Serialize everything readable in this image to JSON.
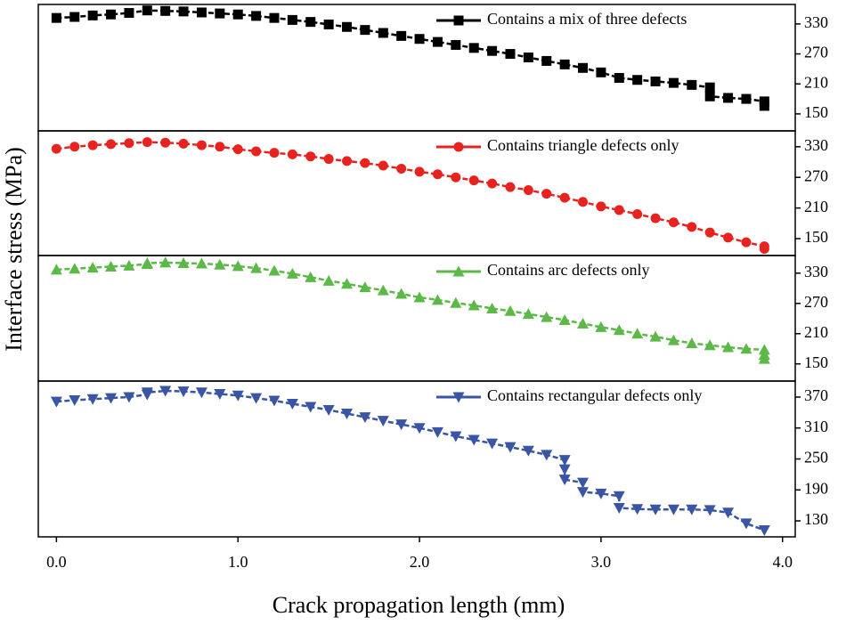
{
  "x_label": "Crack propagation length (mm)",
  "y_label": "Interface stress (MPa)",
  "chart_data": [
    {
      "type": "line",
      "linestyle": "dashed",
      "legend": "upper right",
      "xlim": [
        -0.1,
        4.07
      ],
      "ylim": [
        116,
        369
      ],
      "yticks": [
        150,
        210,
        270,
        330
      ],
      "x": [
        0,
        0.1,
        0.2,
        0.3,
        0.4,
        0.5,
        0.6,
        0.7,
        0.8,
        0.9,
        1.0,
        1.1,
        1.2,
        1.3,
        1.4,
        1.5,
        1.6,
        1.7,
        1.8,
        1.9,
        2.0,
        2.1,
        2.2,
        2.3,
        2.4,
        2.5,
        2.6,
        2.7,
        2.8,
        2.9,
        3.0,
        3.1,
        3.2,
        3.3,
        3.4,
        3.5,
        3.6,
        3.6,
        3.7,
        3.8,
        3.9,
        3.9
      ],
      "series": [
        {
          "name": "Contains a mix of three defects",
          "color": "#000000",
          "marker": "square",
          "values": [
            342,
            344,
            347,
            349,
            352,
            357,
            356,
            355,
            353,
            351,
            349,
            346,
            342,
            338,
            334,
            329,
            324,
            318,
            312,
            306,
            300,
            294,
            288,
            282,
            276,
            270,
            263,
            256,
            249,
            242,
            233,
            222,
            218,
            215,
            212,
            208,
            203,
            185,
            182,
            180,
            175,
            166
          ]
        }
      ]
    },
    {
      "type": "line",
      "linestyle": "dashed",
      "legend": "upper right",
      "xlim": [
        -0.1,
        4.07
      ],
      "ylim": [
        117,
        361
      ],
      "yticks": [
        150,
        210,
        270,
        330
      ],
      "x": [
        0,
        0.1,
        0.2,
        0.3,
        0.4,
        0.5,
        0.6,
        0.7,
        0.8,
        0.9,
        1.0,
        1.1,
        1.2,
        1.3,
        1.4,
        1.5,
        1.6,
        1.7,
        1.8,
        1.9,
        2.0,
        2.1,
        2.2,
        2.3,
        2.4,
        2.5,
        2.6,
        2.7,
        2.8,
        2.9,
        3.0,
        3.1,
        3.2,
        3.3,
        3.4,
        3.5,
        3.6,
        3.7,
        3.8,
        3.9,
        3.9
      ],
      "series": [
        {
          "name": "Contains triangle defects only",
          "color": "#e8231f",
          "marker": "circle",
          "values": [
            326,
            330,
            333,
            335,
            337,
            339,
            338,
            336,
            333,
            330,
            325,
            321,
            318,
            315,
            311,
            306,
            302,
            298,
            293,
            287,
            281,
            276,
            270,
            264,
            258,
            251,
            245,
            238,
            230,
            222,
            213,
            206,
            198,
            190,
            182,
            173,
            162,
            152,
            143,
            135,
            130
          ]
        }
      ]
    },
    {
      "type": "line",
      "linestyle": "dashed",
      "legend": "upper right",
      "xlim": [
        -0.1,
        4.07
      ],
      "ylim": [
        116,
        365
      ],
      "yticks": [
        150,
        210,
        270,
        330
      ],
      "x": [
        0,
        0.1,
        0.2,
        0.3,
        0.4,
        0.5,
        0.5,
        0.6,
        0.7,
        0.8,
        0.9,
        1.0,
        1.1,
        1.2,
        1.3,
        1.4,
        1.5,
        1.6,
        1.7,
        1.8,
        1.9,
        2.0,
        2.1,
        2.2,
        2.3,
        2.4,
        2.5,
        2.6,
        2.7,
        2.8,
        2.9,
        3.0,
        3.1,
        3.2,
        3.3,
        3.4,
        3.5,
        3.6,
        3.7,
        3.8,
        3.9,
        3.9,
        3.9
      ],
      "series": [
        {
          "name": "Contains arc defects only",
          "color": "#5cb847",
          "marker": "triangle-up",
          "values": [
            337,
            339,
            341,
            343,
            345,
            348,
            350,
            351,
            350,
            349,
            347,
            344,
            340,
            335,
            329,
            322,
            315,
            309,
            302,
            296,
            289,
            282,
            277,
            271,
            266,
            260,
            255,
            249,
            243,
            237,
            230,
            223,
            217,
            210,
            204,
            197,
            191,
            187,
            183,
            180,
            178,
            168,
            160
          ]
        }
      ]
    },
    {
      "type": "line",
      "linestyle": "dashed",
      "legend": "upper right",
      "xlim": [
        -0.1,
        4.07
      ],
      "ylim": [
        99,
        401
      ],
      "yticks": [
        130,
        190,
        250,
        310,
        370
      ],
      "xticks": [
        {
          "value": 0,
          "label": "0.0"
        },
        {
          "value": 1,
          "label": "1.0"
        },
        {
          "value": 2,
          "label": "2.0"
        },
        {
          "value": 3,
          "label": "3.0"
        },
        {
          "value": 4,
          "label": "4.0"
        }
      ],
      "x": [
        0,
        0.1,
        0.2,
        0.3,
        0.4,
        0.5,
        0.5,
        0.6,
        0.7,
        0.8,
        0.9,
        1.0,
        1.1,
        1.2,
        1.3,
        1.4,
        1.5,
        1.6,
        1.7,
        1.8,
        1.9,
        2.0,
        2.1,
        2.2,
        2.3,
        2.4,
        2.5,
        2.6,
        2.7,
        2.8,
        2.8,
        2.8,
        2.9,
        2.9,
        3.0,
        3.1,
        3.1,
        3.2,
        3.3,
        3.4,
        3.5,
        3.6,
        3.7,
        3.8,
        3.9
      ],
      "series": [
        {
          "name": "Contains rectangular defects only",
          "color": "#3a55a4",
          "marker": "triangle-down",
          "values": [
            361,
            364,
            366,
            368,
            370,
            375,
            379,
            382,
            381,
            379,
            376,
            373,
            368,
            363,
            357,
            351,
            345,
            338,
            331,
            324,
            317,
            310,
            302,
            294,
            287,
            280,
            273,
            266,
            258,
            248,
            230,
            210,
            204,
            186,
            183,
            178,
            155,
            153,
            152,
            152,
            152,
            151,
            146,
            125,
            112
          ]
        }
      ]
    }
  ]
}
